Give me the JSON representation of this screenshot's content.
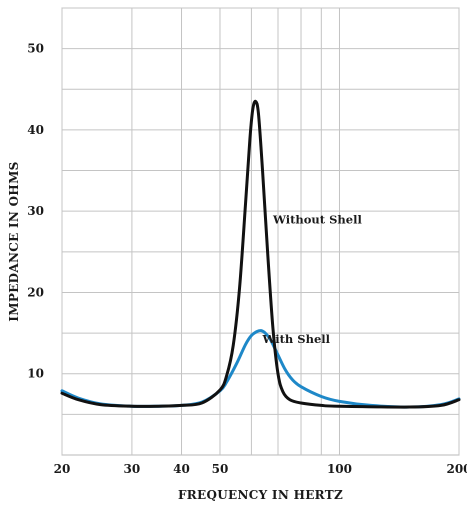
{
  "chart_data": {
    "type": "line",
    "x_scale": "log",
    "xlabel": "FREQUENCY IN HERTZ",
    "ylabel": "IMPEDANCE IN OHMS",
    "xlim": [
      20,
      200
    ],
    "ylim": [
      0,
      55
    ],
    "grid": true,
    "x_ticks": [
      20,
      30,
      40,
      50,
      100,
      200
    ],
    "x_tick_labels": [
      "20",
      "30",
      "40",
      "50",
      "100",
      "200"
    ],
    "x_grid_lines": [
      20,
      30,
      40,
      50,
      60,
      70,
      80,
      90,
      100,
      200
    ],
    "y_ticks": [
      10,
      20,
      30,
      40,
      50
    ],
    "y_tick_labels": [
      "10",
      "20",
      "30",
      "40",
      "50"
    ],
    "y_grid_lines": [
      5,
      10,
      15,
      20,
      25,
      30,
      35,
      40,
      45,
      50,
      55
    ],
    "series": [
      {
        "name": "With Shell",
        "color": "#1e88c8",
        "points": [
          [
            20,
            7.9
          ],
          [
            22,
            7.0
          ],
          [
            25,
            6.3
          ],
          [
            30,
            6.0
          ],
          [
            35,
            6.0
          ],
          [
            40,
            6.1
          ],
          [
            45,
            6.5
          ],
          [
            50,
            7.9
          ],
          [
            52,
            9.0
          ],
          [
            55,
            11.2
          ],
          [
            58,
            13.6
          ],
          [
            60,
            14.7
          ],
          [
            62,
            15.2
          ],
          [
            63.5,
            15.3
          ],
          [
            65,
            15.0
          ],
          [
            67,
            14.2
          ],
          [
            70,
            12.3
          ],
          [
            73,
            10.5
          ],
          [
            76,
            9.3
          ],
          [
            80,
            8.4
          ],
          [
            90,
            7.2
          ],
          [
            100,
            6.6
          ],
          [
            120,
            6.1
          ],
          [
            150,
            5.9
          ],
          [
            180,
            6.2
          ],
          [
            200,
            6.9
          ]
        ]
      },
      {
        "name": "Without Shell",
        "color": "#111111",
        "points": [
          [
            20,
            7.6
          ],
          [
            22,
            6.8
          ],
          [
            25,
            6.2
          ],
          [
            30,
            6.0
          ],
          [
            35,
            6.0
          ],
          [
            40,
            6.1
          ],
          [
            45,
            6.4
          ],
          [
            50,
            8.0
          ],
          [
            52,
            9.8
          ],
          [
            54,
            13.5
          ],
          [
            56,
            20.5
          ],
          [
            58,
            31.0
          ],
          [
            59.5,
            39.0
          ],
          [
            60.5,
            42.6
          ],
          [
            61.5,
            43.5
          ],
          [
            62.5,
            42.0
          ],
          [
            64,
            35.0
          ],
          [
            66,
            24.5
          ],
          [
            68,
            15.5
          ],
          [
            70,
            10.0
          ],
          [
            72,
            7.8
          ],
          [
            75,
            6.8
          ],
          [
            80,
            6.4
          ],
          [
            90,
            6.1
          ],
          [
            100,
            6.0
          ],
          [
            150,
            5.9
          ],
          [
            180,
            6.1
          ],
          [
            200,
            6.8
          ]
        ]
      }
    ],
    "annotations": [
      {
        "text": "Without Shell",
        "x": 68,
        "y": 28.5
      },
      {
        "text": "With Shell",
        "x": 64,
        "y": 13.8
      }
    ]
  }
}
